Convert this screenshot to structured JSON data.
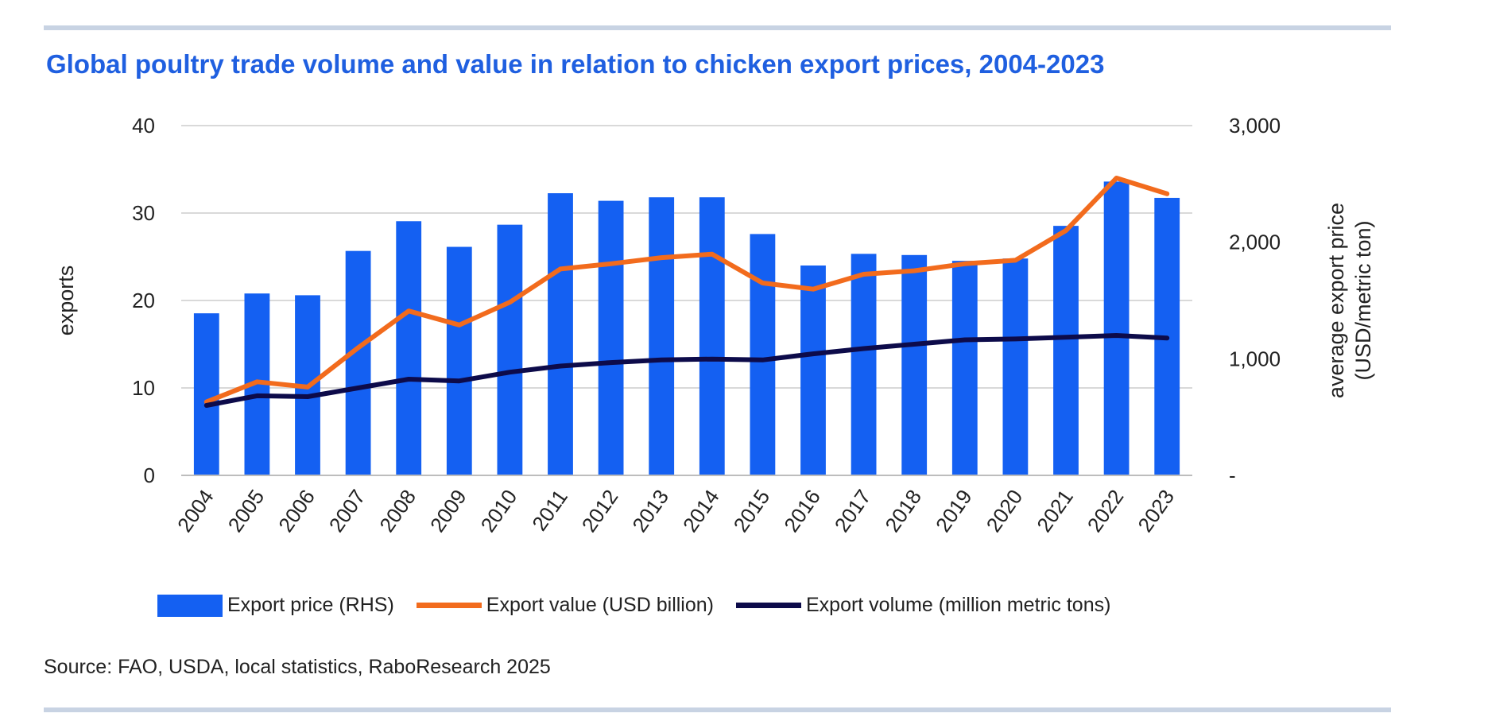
{
  "chart_data": {
    "type": "bar",
    "title": "Global poultry trade volume and value in relation to chicken export prices, 2004-2023",
    "ylabel": "exports",
    "y2label_line1": "average export price",
    "y2label_line2": "(USD/metric ton)",
    "ylim": [
      0,
      40
    ],
    "y2lim": [
      0,
      3000
    ],
    "yticks": [
      "0",
      "10",
      "20",
      "30",
      "40"
    ],
    "y2ticks": [
      "-",
      "1,000",
      "2,000",
      "3,000"
    ],
    "categories": [
      "2004",
      "2005",
      "2006",
      "2007",
      "2008",
      "2009",
      "2010",
      "2011",
      "2012",
      "2013",
      "2014",
      "2015",
      "2016",
      "2017",
      "2018",
      "2019",
      "2020",
      "2021",
      "2022",
      "2023"
    ],
    "series": [
      {
        "name": "Export price (RHS)",
        "type": "bar",
        "axis": "right",
        "color": "#1460f2",
        "values": [
          1390,
          1560,
          1545,
          1925,
          2180,
          1960,
          2150,
          2420,
          2355,
          2385,
          2385,
          2070,
          1800,
          1900,
          1890,
          1840,
          1860,
          2140,
          2520,
          2380
        ]
      },
      {
        "name": "Export value (USD billion)",
        "type": "line",
        "axis": "left",
        "color": "#f26b1d",
        "values": [
          8.4,
          10.7,
          10.1,
          14.6,
          18.8,
          17.2,
          19.8,
          23.6,
          24.2,
          24.9,
          25.3,
          22.0,
          21.3,
          23.0,
          23.4,
          24.2,
          24.6,
          28.0,
          34.0,
          32.2
        ]
      },
      {
        "name": "Export volume (million metric tons)",
        "type": "line",
        "axis": "left",
        "color": "#0d0b4a",
        "values": [
          8.0,
          9.1,
          9.0,
          10.0,
          11.0,
          10.8,
          11.8,
          12.5,
          12.9,
          13.2,
          13.3,
          13.2,
          13.9,
          14.5,
          15.0,
          15.5,
          15.6,
          15.8,
          16.0,
          15.7
        ]
      }
    ],
    "grid": "horizontal",
    "legend": "bottom"
  },
  "source": "Source: FAO, USDA, local statistics, RaboResearch 2025"
}
